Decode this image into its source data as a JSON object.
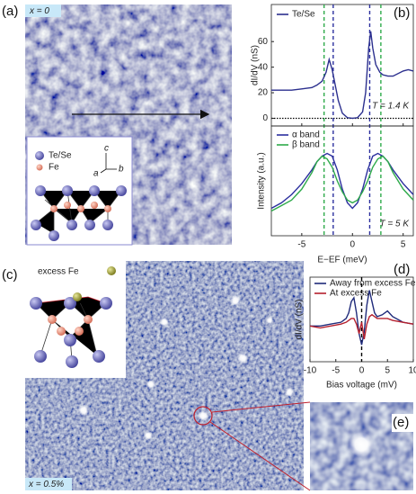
{
  "panel_labels": [
    "(a)",
    "(b)",
    "(c)",
    "(d)",
    "(e)"
  ],
  "panel_a": {
    "tag": "x = 0",
    "legend": [
      "Te/Se",
      "Fe"
    ],
    "axes": [
      "c",
      "a",
      "b"
    ]
  },
  "panel_c": {
    "tag": "x = 0.5%",
    "legend": "excess Fe"
  },
  "chart_data": [
    {
      "type": "line",
      "ylabel": "dI/dV (nS)",
      "annotation": "T = 1.4 K",
      "x": [
        -8,
        -7,
        -6,
        -5,
        -4,
        -3.5,
        -3,
        -2.6,
        -2.3,
        -2,
        -1.7,
        -1.4,
        -1,
        -0.5,
        0,
        0.5,
        1,
        1.3,
        1.6,
        1.8,
        2,
        2.3,
        2.7,
        3,
        3.5,
        4,
        5,
        5.5,
        6
      ],
      "series": [
        {
          "name": "Te/Se",
          "color": "#2b2f8e",
          "values": [
            22,
            22,
            22,
            23,
            24,
            26,
            29,
            36,
            46,
            38,
            26,
            14,
            4,
            0.5,
            0,
            0.5,
            5,
            20,
            55,
            68,
            55,
            42,
            36,
            34,
            33,
            33,
            37,
            38,
            37
          ]
        }
      ],
      "xlim": [
        -8,
        6
      ],
      "ylim": [
        -6,
        89
      ],
      "xticks": [
        -5,
        0,
        5
      ],
      "yticks": [
        0,
        20,
        40,
        60
      ],
      "guides": [
        {
          "x": -2.8,
          "color": "#2eaa4a"
        },
        {
          "x": -1.9,
          "color": "#2b2f9e"
        },
        {
          "x": 1.7,
          "color": "#2b2f9e"
        },
        {
          "x": 2.8,
          "color": "#2eaa4a"
        }
      ]
    },
    {
      "type": "line",
      "ylabel": "Intensity (a.u.)",
      "xlabel": "E−EF (meV)",
      "annotation": "T = 5 K",
      "x": [
        -8,
        -7,
        -6,
        -5,
        -4,
        -3.5,
        -3,
        -2.5,
        -2,
        -1.5,
        -1,
        -0.5,
        0,
        0.5,
        1,
        1.5,
        2,
        2.5,
        3,
        3.5,
        4,
        5,
        6
      ],
      "series": [
        {
          "name": "α band",
          "color": "#2b2f9e",
          "values": [
            10,
            12,
            15,
            19,
            24,
            27,
            29,
            30,
            29,
            24,
            17,
            12,
            10,
            12,
            17,
            24,
            29,
            30,
            29,
            27,
            24,
            19,
            15
          ]
        },
        {
          "name": "β band",
          "color": "#2eaa4a",
          "values": [
            9,
            11,
            13,
            17,
            23,
            27,
            29,
            28,
            25,
            20,
            16,
            13,
            12,
            13,
            16,
            20,
            25,
            28,
            29,
            27,
            23,
            17,
            13
          ]
        }
      ],
      "xlim": [
        -8,
        6
      ],
      "ylim": [
        0,
        40
      ],
      "xticks": [
        -5,
        0,
        5
      ]
    },
    {
      "type": "line",
      "ylabel": "dI/dV (nS)",
      "xlabel": "Bias voltage (mV)",
      "x": [
        -10,
        -8,
        -6,
        -4,
        -3,
        -2.5,
        -2,
        -1.5,
        -1,
        -0.5,
        0,
        0.5,
        1,
        1.5,
        2,
        2.5,
        3,
        4,
        5,
        6,
        8,
        10
      ],
      "series": [
        {
          "name": "Away from excess Fe",
          "color": "#1f2a7a",
          "values": [
            19,
            19,
            20,
            21,
            23,
            26,
            32,
            34,
            26,
            15,
            9,
            16,
            30,
            38,
            32,
            26,
            24,
            25,
            27,
            24,
            21,
            20
          ]
        },
        {
          "name": "At excess Fe",
          "color": "#b5202e",
          "values": [
            19,
            18,
            19,
            20,
            21,
            22,
            23,
            23,
            20,
            15,
            21,
            12,
            20,
            24,
            25,
            24,
            23,
            23,
            23,
            22,
            21,
            20
          ]
        }
      ],
      "xlim": [
        -10,
        10
      ],
      "ylim": [
        0,
        45
      ],
      "xticks": [
        -10,
        -5,
        0,
        5,
        10
      ],
      "guides": [
        {
          "x": 0,
          "color": "#000000"
        }
      ]
    }
  ]
}
